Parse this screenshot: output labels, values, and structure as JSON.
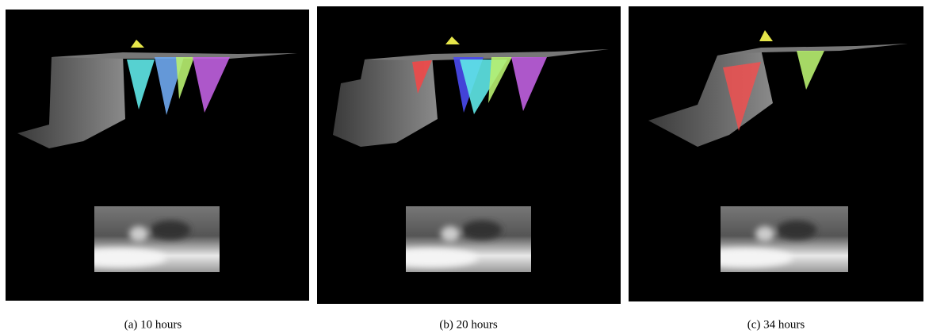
{
  "panels": [
    {
      "caption": "(a) 10 hours"
    },
    {
      "caption": "(b) 20 hours"
    },
    {
      "caption": "(c) 34 hours"
    }
  ]
}
